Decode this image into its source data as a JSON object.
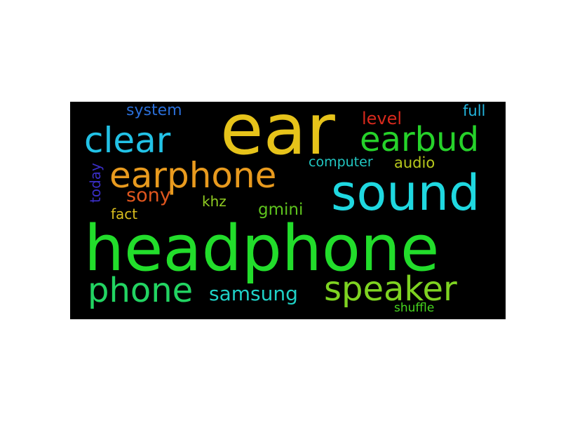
{
  "canvas": {
    "background": "#000000"
  },
  "words": [
    {
      "text": "headphone",
      "color": "#22dd2b"
    },
    {
      "text": "ear",
      "color": "#e6c31a"
    },
    {
      "text": "sound",
      "color": "#1fd8e0"
    },
    {
      "text": "earphone",
      "color": "#e89a1e"
    },
    {
      "text": "clear",
      "color": "#22c2e6"
    },
    {
      "text": "earbud",
      "color": "#26d22a"
    },
    {
      "text": "speaker",
      "color": "#7ed321"
    },
    {
      "text": "phone",
      "color": "#22d462"
    },
    {
      "text": "samsung",
      "color": "#1fd1c6"
    },
    {
      "text": "sony",
      "color": "#e0561e"
    },
    {
      "text": "system",
      "color": "#2a6ed8"
    },
    {
      "text": "level",
      "color": "#d8291c"
    },
    {
      "text": "full",
      "color": "#22b4dc"
    },
    {
      "text": "computer",
      "color": "#22c7c2"
    },
    {
      "text": "audio",
      "color": "#b8c81c"
    },
    {
      "text": "today",
      "color": "#3a2ec6"
    },
    {
      "text": "khz",
      "color": "#90cc22"
    },
    {
      "text": "gmini",
      "color": "#5ec41e"
    },
    {
      "text": "fact",
      "color": "#d8bc1e"
    },
    {
      "text": "shuffle",
      "color": "#46d41e"
    }
  ]
}
